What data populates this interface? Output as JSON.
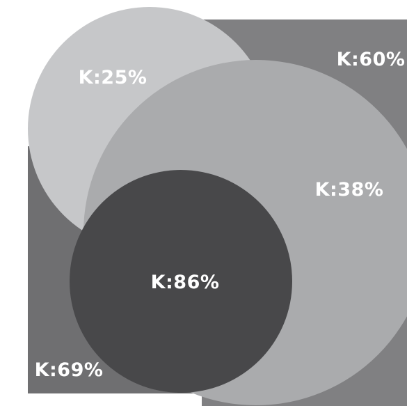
{
  "swatches": {
    "k60": {
      "label": "K:60%",
      "color": "#808082"
    },
    "k69": {
      "label": "K:69%",
      "color": "#6f6f71"
    },
    "k25": {
      "label": "K:25%",
      "color": "#c6c7c9"
    },
    "k38": {
      "label": "K:38%",
      "color": "#aaabad"
    },
    "k86": {
      "label": "K:86%",
      "color": "#48484a"
    }
  }
}
